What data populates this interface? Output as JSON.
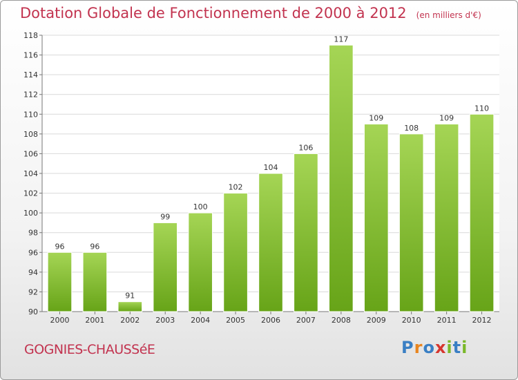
{
  "header": {
    "title": "Dotation Globale de Fonctionnement de 2000 à 2012",
    "subtitle": "(en milliers d'€)"
  },
  "footer": {
    "commune": "GOGNIES-CHAUSSéE",
    "logo_text": "Proxiti"
  },
  "colors": {
    "title": "#c2334f",
    "bar_light": "#a5d555",
    "bar_dark": "#67a418",
    "grid": "#d9d9d9"
  },
  "chart_data": {
    "type": "bar",
    "categories": [
      "2000",
      "2001",
      "2002",
      "2003",
      "2004",
      "2005",
      "2006",
      "2007",
      "2008",
      "2009",
      "2010",
      "2011",
      "2012"
    ],
    "values": [
      96,
      96,
      91,
      99,
      100,
      102,
      104,
      106,
      117,
      109,
      108,
      109,
      110
    ],
    "data_labels": [
      "96",
      "96",
      "91",
      "99",
      "100",
      "102",
      "104",
      "106",
      "117",
      "109",
      "108",
      "109",
      "110"
    ],
    "ylim": [
      90,
      118
    ],
    "yticks": [
      90,
      92,
      94,
      96,
      98,
      100,
      102,
      104,
      106,
      108,
      110,
      112,
      114,
      116,
      118
    ],
    "grid": true,
    "xlabel": "",
    "ylabel": ""
  }
}
